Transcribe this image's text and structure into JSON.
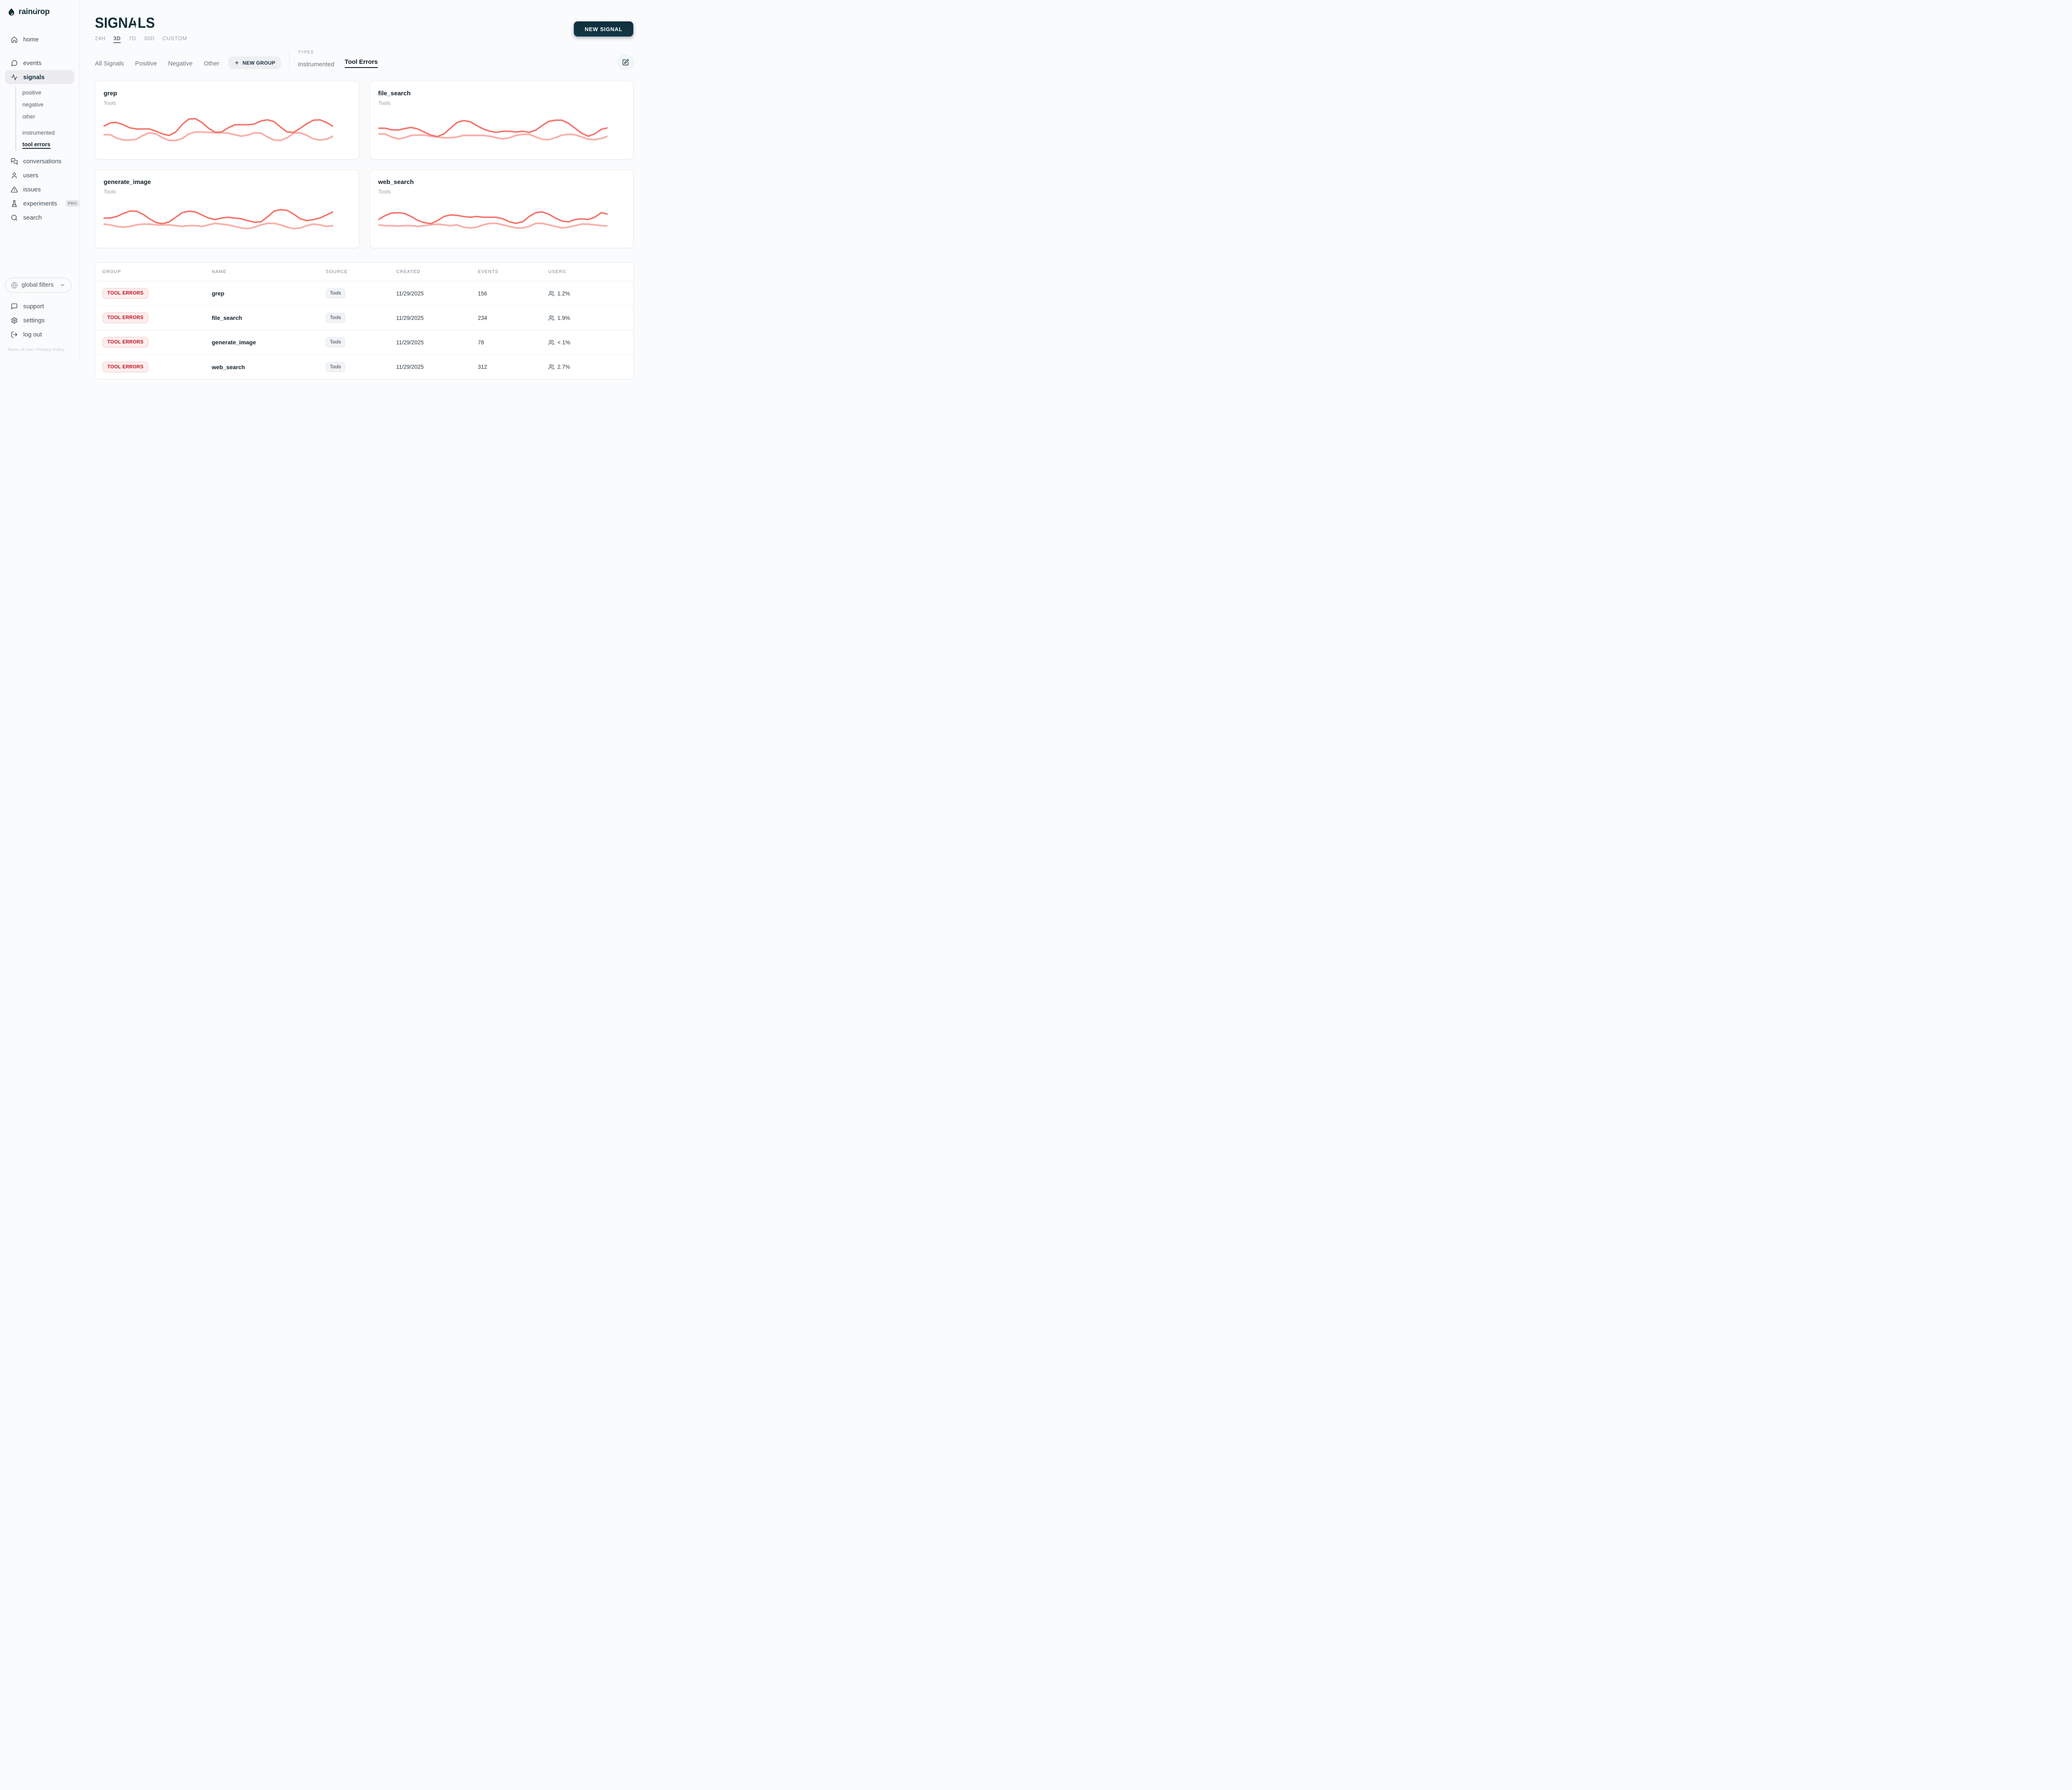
{
  "brand": {
    "name": "raindrop"
  },
  "sidebar": {
    "nav": [
      {
        "label": "home"
      },
      {
        "label": "events"
      },
      {
        "label": "signals"
      }
    ],
    "groups": [
      {
        "label": "positive"
      },
      {
        "label": "negative"
      },
      {
        "label": "other"
      }
    ],
    "types": [
      {
        "label": "instrumented"
      },
      {
        "label": "tool errors"
      }
    ],
    "nav2": [
      {
        "label": "conversations"
      },
      {
        "label": "users"
      },
      {
        "label": "issues"
      },
      {
        "label": "experiments",
        "badge": "PRO"
      },
      {
        "label": "search"
      }
    ],
    "global_filters": {
      "label": "global filters"
    },
    "nav3": [
      {
        "label": "support"
      },
      {
        "label": "settings"
      },
      {
        "label": "log out"
      }
    ],
    "footer": {
      "terms": "Terms of Use",
      "dot": "•",
      "privacy": "Privacy Policy"
    }
  },
  "header": {
    "title": "SIGNALS",
    "time_ranges": [
      {
        "label": "24H"
      },
      {
        "label": "3D"
      },
      {
        "label": "7D"
      },
      {
        "label": "30D"
      },
      {
        "label": "CUSTOM"
      }
    ],
    "new_signal": "NEW SIGNAL"
  },
  "filters": {
    "groups": [
      {
        "label": "All Signals"
      },
      {
        "label": "Positive"
      },
      {
        "label": "Negative"
      },
      {
        "label": "Other"
      }
    ],
    "new_group": "NEW GROUP",
    "types_label": "TYPES",
    "types": [
      {
        "label": "Instrumented"
      },
      {
        "label": "Tool Errors"
      }
    ]
  },
  "colors": {
    "accent": "#15313c",
    "line_dark": "#f3766d",
    "line_light": "#f8b2ac",
    "badge_red": "#c01220"
  },
  "chart_data": [
    {
      "type": "line",
      "title": "grep",
      "subtitle": "Tools",
      "legend_position": "none",
      "grid": false,
      "series": [
        {
          "name": "dark",
          "values": [
            40,
            31,
            30,
            36,
            44,
            47,
            47,
            47,
            53,
            60,
            64,
            55,
            35,
            21,
            20,
            30,
            45,
            56,
            55,
            44,
            36,
            36,
            36,
            34,
            26,
            23,
            28,
            42,
            55,
            56,
            45,
            33,
            24,
            23,
            30,
            40
          ]
        },
        {
          "name": "light",
          "values": [
            62,
            62,
            71,
            76,
            76,
            74,
            64,
            57,
            60,
            70,
            77,
            77,
            72,
            60,
            55,
            55,
            56,
            57,
            57,
            58,
            62,
            66,
            63,
            57,
            58,
            68,
            76,
            77,
            70,
            58,
            57,
            64,
            73,
            76,
            74,
            66
          ]
        }
      ]
    },
    {
      "type": "line",
      "title": "file_search",
      "subtitle": "Tools",
      "legend_position": "none",
      "grid": false,
      "series": [
        {
          "name": "dark",
          "values": [
            45,
            45,
            49,
            50,
            46,
            43,
            47,
            55,
            63,
            67,
            60,
            45,
            30,
            25,
            28,
            38,
            47,
            53,
            56,
            53,
            53,
            55,
            53,
            56,
            50,
            38,
            27,
            24,
            24,
            32,
            45,
            58,
            66,
            60,
            48,
            44
          ]
        },
        {
          "name": "light",
          "values": [
            60,
            60,
            68,
            73,
            70,
            64,
            63,
            63,
            66,
            68,
            70,
            70,
            68,
            64,
            64,
            64,
            64,
            66,
            70,
            73,
            70,
            64,
            61,
            61,
            68,
            74,
            75,
            70,
            63,
            61,
            62,
            68,
            74,
            75,
            72,
            66
          ]
        }
      ]
    },
    {
      "type": "line",
      "title": "generate_image",
      "subtitle": "Tools",
      "legend_position": "none",
      "grid": false,
      "series": [
        {
          "name": "dark",
          "values": [
            48,
            48,
            44,
            36,
            30,
            30,
            38,
            50,
            60,
            63,
            58,
            46,
            34,
            30,
            32,
            40,
            48,
            52,
            48,
            46,
            48,
            50,
            55,
            59,
            58,
            45,
            30,
            26,
            28,
            38,
            50,
            55,
            52,
            48,
            40,
            32
          ]
        },
        {
          "name": "light",
          "values": [
            64,
            66,
            70,
            72,
            70,
            66,
            64,
            64,
            66,
            66,
            66,
            68,
            70,
            68,
            68,
            70,
            66,
            62,
            64,
            66,
            70,
            74,
            76,
            72,
            66,
            62,
            62,
            66,
            72,
            76,
            74,
            68,
            64,
            66,
            70,
            68
          ]
        }
      ]
    },
    {
      "type": "line",
      "title": "web_search",
      "subtitle": "Tools",
      "legend_position": "none",
      "grid": false,
      "series": [
        {
          "name": "dark",
          "values": [
            52,
            42,
            35,
            34,
            36,
            44,
            54,
            60,
            63,
            55,
            44,
            40,
            41,
            44,
            46,
            44,
            46,
            46,
            46,
            50,
            58,
            62,
            58,
            44,
            34,
            32,
            38,
            48,
            56,
            58,
            52,
            50,
            52,
            46,
            34,
            38
          ]
        },
        {
          "name": "light",
          "values": [
            66,
            68,
            68,
            69,
            68,
            68,
            70,
            68,
            66,
            64,
            66,
            68,
            66,
            72,
            74,
            72,
            66,
            62,
            62,
            66,
            70,
            74,
            74,
            70,
            62,
            62,
            66,
            70,
            74,
            72,
            68,
            64,
            64,
            66,
            68,
            69
          ]
        }
      ]
    }
  ],
  "table": {
    "columns": [
      {
        "label": "GROUP"
      },
      {
        "label": "NAME"
      },
      {
        "label": "SOURCE"
      },
      {
        "label": "CREATED"
      },
      {
        "label": "EVENTS"
      },
      {
        "label": "USERS"
      }
    ],
    "rows": [
      {
        "group": "TOOL ERRORS",
        "name": "grep",
        "source": "Tools",
        "created": "11/29/2025",
        "events": "156",
        "users": "1.2%"
      },
      {
        "group": "TOOL ERRORS",
        "name": "file_search",
        "source": "Tools",
        "created": "11/29/2025",
        "events": "234",
        "users": "1.9%"
      },
      {
        "group": "TOOL ERRORS",
        "name": "generate_image",
        "source": "Tools",
        "created": "11/29/2025",
        "events": "78",
        "users": "< 1%"
      },
      {
        "group": "TOOL ERRORS",
        "name": "web_search",
        "source": "Tools",
        "created": "11/29/2025",
        "events": "312",
        "users": "2.7%"
      }
    ]
  }
}
